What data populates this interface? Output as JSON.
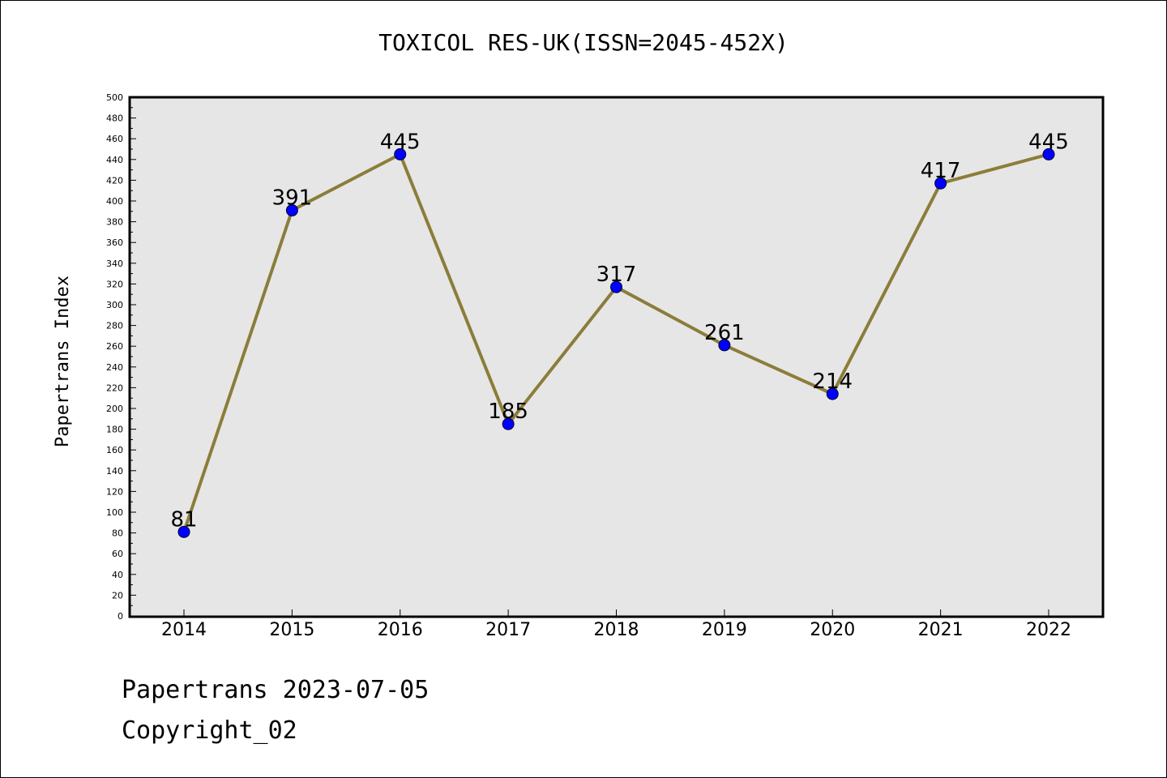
{
  "title": "TOXICOL RES-UK(ISSN=2045-452X)",
  "footer": {
    "date_line": "Papertrans 2023-07-05",
    "copyright_line": "Copyright_02"
  },
  "colors": {
    "line": "#8b7d3a",
    "marker": "#0000ff",
    "plot_background": "#e6e6e6"
  },
  "chart_data": {
    "type": "line",
    "title": "TOXICOL RES-UK(ISSN=2045-452X)",
    "xlabel": "",
    "ylabel": "Papertrans Index",
    "categories": [
      "2014",
      "2015",
      "2016",
      "2017",
      "2018",
      "2019",
      "2020",
      "2021",
      "2022"
    ],
    "series": [
      {
        "values": [
          81,
          391,
          445,
          185,
          317,
          261,
          214,
          417,
          445
        ]
      }
    ],
    "data_labels": [
      "81",
      "391",
      "445",
      "185",
      "317",
      "261",
      "214",
      "417",
      "445"
    ],
    "ylim": [
      0,
      500
    ],
    "yticks": [
      0,
      20,
      40,
      60,
      80,
      100,
      120,
      140,
      160,
      180,
      200,
      220,
      240,
      260,
      280,
      300,
      320,
      340,
      360,
      380,
      400,
      420,
      440,
      460,
      480,
      500
    ],
    "grid": false,
    "legend": "none"
  }
}
